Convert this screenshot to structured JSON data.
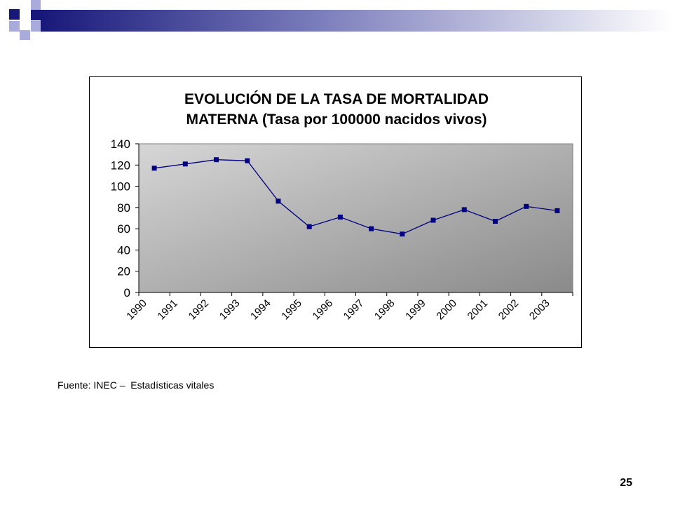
{
  "slide": {
    "source_note": "Fuente: INEC –  Estadísticas vitales",
    "page_number": "25"
  },
  "colors": {
    "deco_dark": "#17187a",
    "deco_light": "#a9abdb",
    "series": "#000080",
    "plot_light": "#d4d4d4",
    "plot_dark": "#8c8c8c"
  },
  "chart_data": {
    "type": "line",
    "title_lines": [
      "EVOLUCIÓN DE LA TASA DE MORTALIDAD",
      "MATERNA (Tasa por 100000 nacidos vivos)"
    ],
    "xlabel": "",
    "ylabel": "",
    "categories": [
      "1990",
      "1991",
      "1992",
      "1993",
      "1994",
      "1995",
      "1996",
      "1997",
      "1998",
      "1999",
      "2000",
      "2001",
      "2002",
      "2003"
    ],
    "values": [
      117,
      121,
      125,
      124,
      86,
      62,
      71,
      60,
      55,
      68,
      78,
      67,
      81,
      77
    ],
    "ylim": [
      0,
      140
    ],
    "yticks": [
      0,
      20,
      40,
      60,
      80,
      100,
      120,
      140
    ],
    "grid": false,
    "legend": "none"
  }
}
